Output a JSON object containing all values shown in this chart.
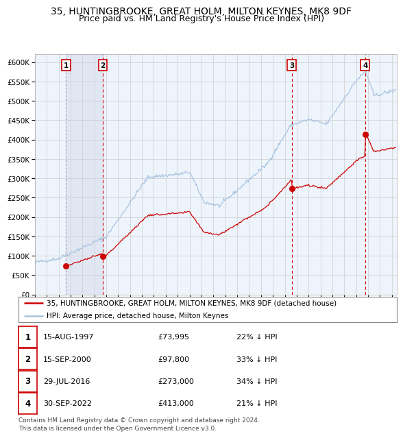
{
  "title": "35, HUNTINGBROOKE, GREAT HOLM, MILTON KEYNES, MK8 9DF",
  "subtitle": "Price paid vs. HM Land Registry's House Price Index (HPI)",
  "ylim": [
    0,
    620000
  ],
  "yticks": [
    0,
    50000,
    100000,
    150000,
    200000,
    250000,
    300000,
    350000,
    400000,
    450000,
    500000,
    550000,
    600000
  ],
  "ytick_labels": [
    "£0",
    "£50K",
    "£100K",
    "£150K",
    "£200K",
    "£250K",
    "£300K",
    "£350K",
    "£400K",
    "£450K",
    "£500K",
    "£550K",
    "£600K"
  ],
  "hpi_color": "#a8c4e0",
  "price_color": "#cc0000",
  "dot_color": "#cc0000",
  "grid_color": "#cccccc",
  "bg_color": "#ffffff",
  "plot_bg_color": "#eef4fb",
  "sale_times": [
    1997.622,
    2000.706,
    2016.578,
    2022.748
  ],
  "sale_prices": [
    73995,
    97800,
    273000,
    413000
  ],
  "sale_labels": [
    "1",
    "2",
    "3",
    "4"
  ],
  "legend_entries": [
    "35, HUNTINGBROOKE, GREAT HOLM, MILTON KEYNES, MK8 9DF (detached house)",
    "HPI: Average price, detached house, Milton Keynes"
  ],
  "table_rows": [
    {
      "num": "1",
      "date": "15-AUG-1997",
      "price": "£73,995",
      "hpi": "22% ↓ HPI"
    },
    {
      "num": "2",
      "date": "15-SEP-2000",
      "price": "£97,800",
      "hpi": "33% ↓ HPI"
    },
    {
      "num": "3",
      "date": "29-JUL-2016",
      "price": "£273,000",
      "hpi": "34% ↓ HPI"
    },
    {
      "num": "4",
      "date": "30-SEP-2022",
      "price": "£413,000",
      "hpi": "21% ↓ HPI"
    }
  ],
  "footnote": "Contains HM Land Registry data © Crown copyright and database right 2024.\nThis data is licensed under the Open Government Licence v3.0.",
  "title_fontsize": 10,
  "subtitle_fontsize": 9,
  "tick_fontsize": 7.5,
  "legend_fontsize": 7.5,
  "table_fontsize": 8,
  "footnote_fontsize": 6.5
}
